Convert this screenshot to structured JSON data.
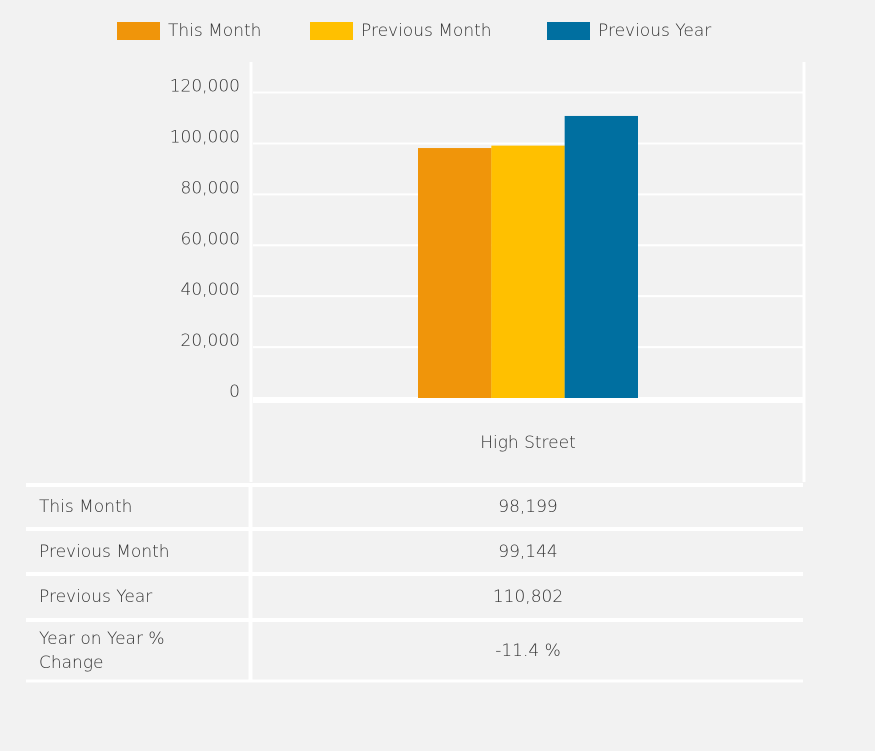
{
  "chart_data": {
    "type": "bar",
    "categories": [
      "High Street"
    ],
    "series": [
      {
        "name": "This Month",
        "color": "#f0950a",
        "values": [
          98199
        ],
        "value_labels": [
          "98,199"
        ]
      },
      {
        "name": "Previous Month",
        "color": "#ffc000",
        "values": [
          99144
        ],
        "value_labels": [
          "99,144"
        ]
      },
      {
        "name": "Previous Year",
        "color": "#006fa0",
        "values": [
          110802
        ],
        "value_labels": [
          "110,802"
        ]
      }
    ],
    "change_row": {
      "name": "Year on Year % Change",
      "values": [
        "-11.4 %"
      ]
    },
    "ylim": [
      0,
      132000
    ],
    "yticks": [
      0,
      {
        "value": 20000,
        "label": "20,000"
      },
      {
        "value": 40000,
        "label": "40,000"
      },
      {
        "value": 60000,
        "label": "60,000"
      },
      {
        "value": 80000,
        "label": "80,000"
      },
      {
        "value": 100000,
        "label": "100,000"
      },
      {
        "value": 120000,
        "label": "120,000"
      }
    ],
    "grid": true,
    "legend": "top"
  }
}
